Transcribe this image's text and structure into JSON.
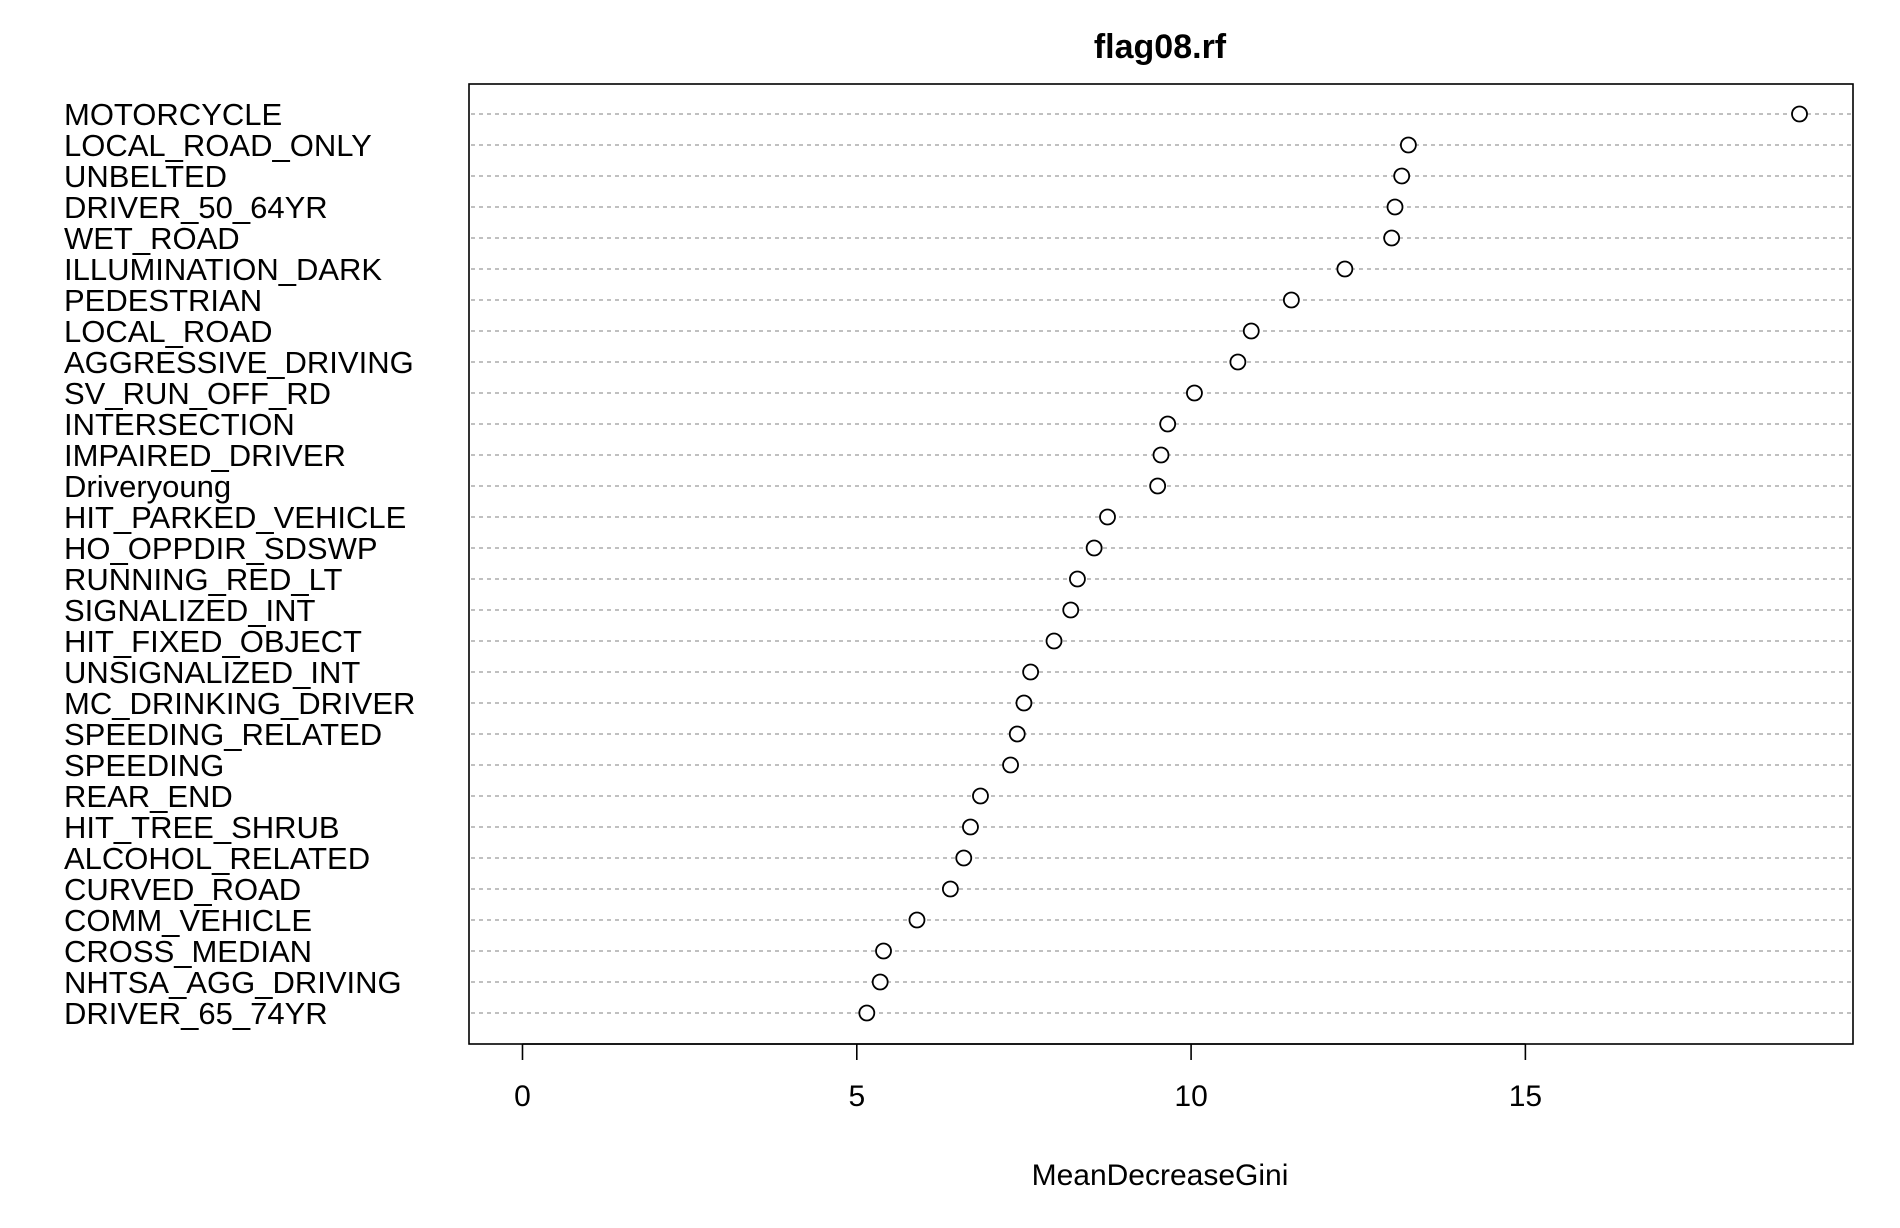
{
  "chart_data": {
    "type": "scatter",
    "title": "flag08.rf",
    "xlabel": "MeanDecreaseGini",
    "ylabel": "",
    "xlim": [
      -0.8,
      19.9
    ],
    "xticks": [
      0,
      5,
      10,
      15
    ],
    "grid": "horizontal-dotted",
    "categories": [
      "MOTORCYCLE",
      "LOCAL_ROAD_ONLY",
      "UNBELTED",
      "DRIVER_50_64YR",
      "WET_ROAD",
      "ILLUMINATION_DARK",
      "PEDESTRIAN",
      "LOCAL_ROAD",
      "AGGRESSIVE_DRIVING",
      "SV_RUN_OFF_RD",
      "INTERSECTION",
      "IMPAIRED_DRIVER",
      "Driveryoung",
      "HIT_PARKED_VEHICLE",
      "HO_OPPDIR_SDSWP",
      "RUNNING_RED_LT",
      "SIGNALIZED_INT",
      "HIT_FIXED_OBJECT",
      "UNSIGNALIZED_INT",
      "MC_DRINKING_DRIVER",
      "SPEEDING_RELATED",
      "SPEEDING",
      "REAR_END",
      "HIT_TREE_SHRUB",
      "ALCOHOL_RELATED",
      "CURVED_ROAD",
      "COMM_VEHICLE",
      "CROSS_MEDIAN",
      "NHTSA_AGG_DRIVING",
      "DRIVER_65_74YR"
    ],
    "values": [
      19.1,
      13.25,
      13.15,
      13.05,
      13.0,
      12.3,
      11.5,
      10.9,
      10.7,
      10.05,
      9.65,
      9.55,
      9.5,
      8.75,
      8.55,
      8.3,
      8.2,
      7.95,
      7.6,
      7.5,
      7.4,
      7.3,
      6.85,
      6.7,
      6.6,
      6.4,
      5.9,
      5.4,
      5.35,
      5.15
    ]
  }
}
